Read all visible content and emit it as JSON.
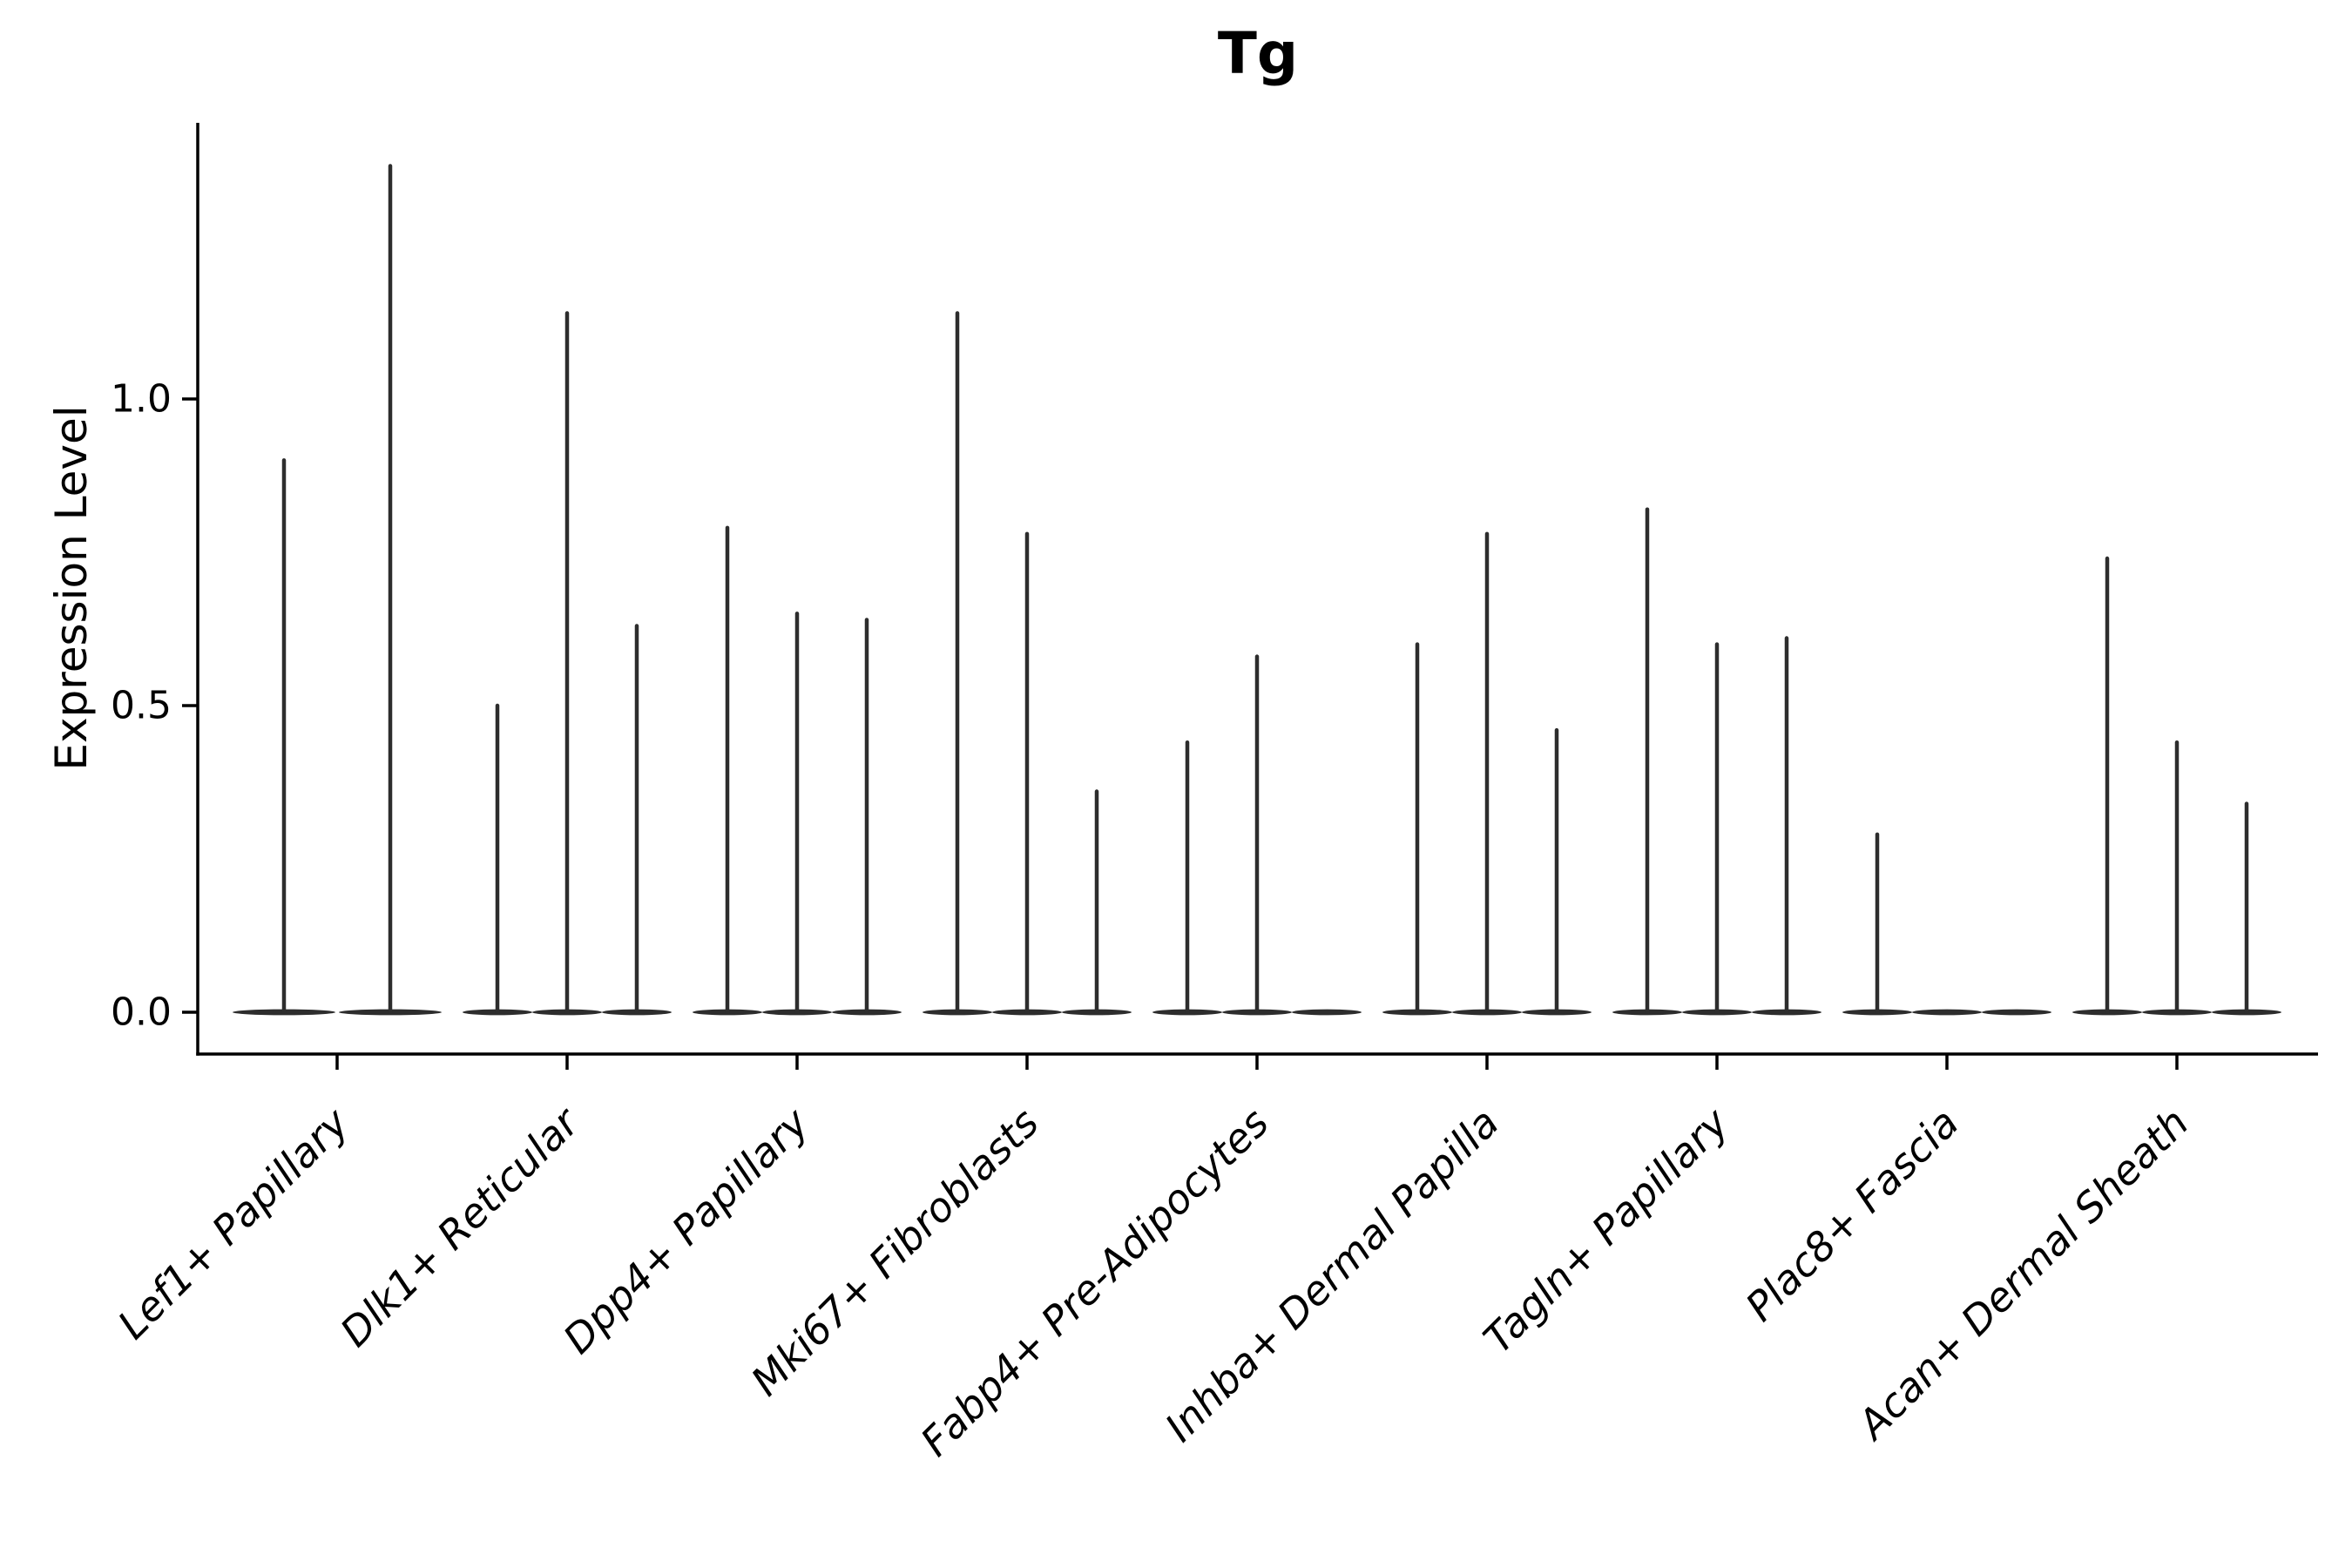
{
  "page": {
    "background": "#ffffff"
  },
  "chart_data": {
    "type": "violin",
    "title": "Tg",
    "ylabel": "Expression Level",
    "xlabel": "",
    "yticks": [
      0.0,
      0.5,
      1.0
    ],
    "ylim": [
      -0.068,
      1.45
    ],
    "grid": false,
    "legend": false,
    "x_tick_rotation_deg": 45,
    "x_tick_style": "italic",
    "categories": [
      "Lef1+ Papillary",
      "Dlk1+ Reticular",
      "Dpp4+ Papillary",
      "Mki67+ Fibroblasts",
      "Fabp4+ Pre-Adipocytes",
      "Inhba+ Dermal Papilla",
      "Tagln+ Papillary",
      "Plac8+ Fascia",
      "Acan+ Dermal Sheath"
    ],
    "series": [
      {
        "category": "Lef1+ Papillary",
        "violin_maxima": [
          0.9,
          1.38
        ]
      },
      {
        "category": "Dlk1+ Reticular",
        "violin_maxima": [
          0.5,
          1.14,
          0.63
        ]
      },
      {
        "category": "Dpp4+ Papillary",
        "violin_maxima": [
          0.79,
          0.65,
          0.64
        ]
      },
      {
        "category": "Mki67+ Fibroblasts",
        "violin_maxima": [
          1.14,
          0.78,
          0.36
        ]
      },
      {
        "category": "Fabp4+ Pre-Adipocytes",
        "violin_maxima": [
          0.44,
          0.58,
          0.0
        ]
      },
      {
        "category": "Inhba+ Dermal Papilla",
        "violin_maxima": [
          0.6,
          0.78,
          0.46
        ]
      },
      {
        "category": "Tagln+ Papillary",
        "violin_maxima": [
          0.82,
          0.6,
          0.61
        ]
      },
      {
        "category": "Plac8+ Fascia",
        "violin_maxima": [
          0.29,
          0.0,
          0.0
        ]
      },
      {
        "category": "Acan+ Dermal Sheath",
        "violin_maxima": [
          0.74,
          0.44,
          0.34
        ]
      }
    ],
    "baseline_value": 0.0,
    "colors": {
      "violin": "#2d2d2d",
      "axis": "#000000",
      "text": "#000000",
      "background": "#ffffff"
    }
  }
}
